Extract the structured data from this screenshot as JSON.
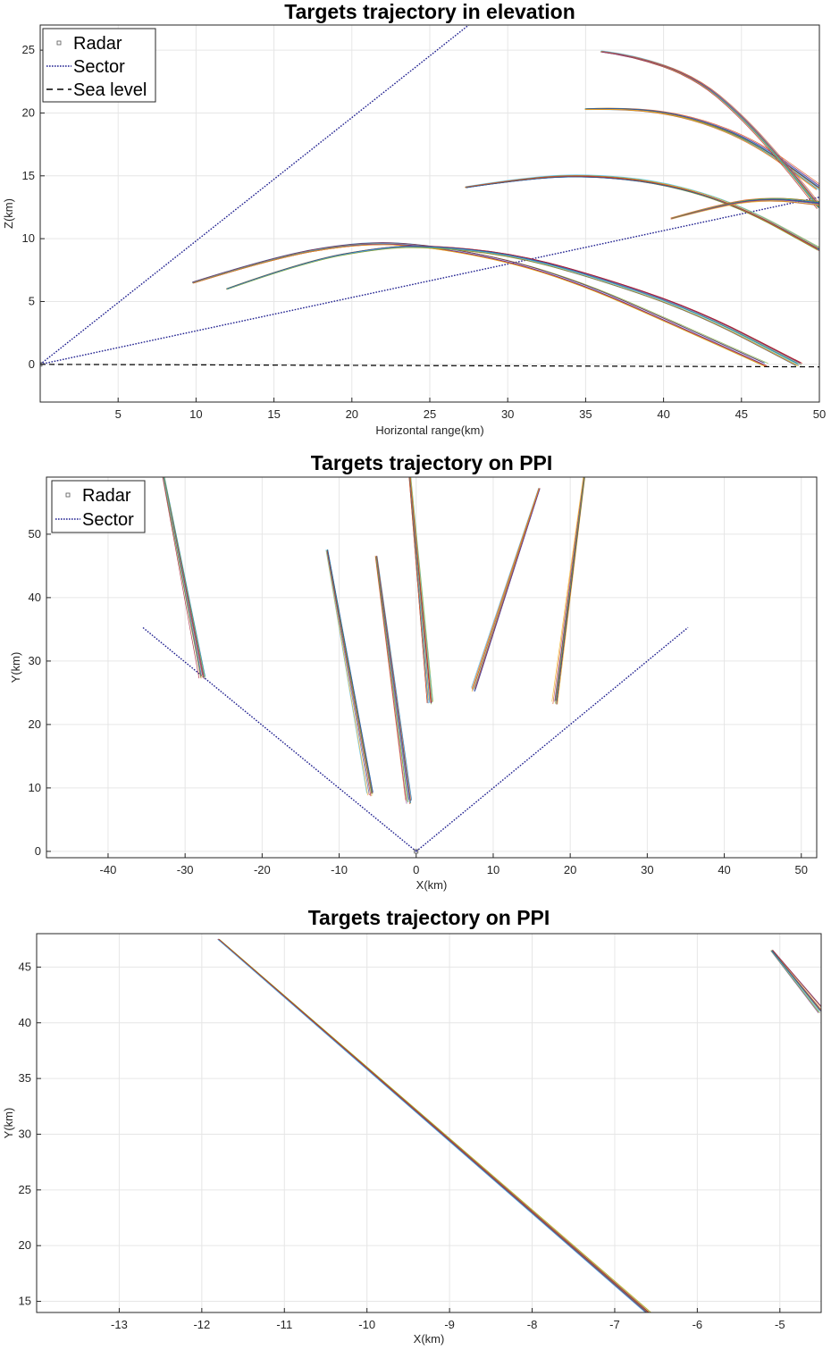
{
  "palette": [
    "#0072BD",
    "#D95319",
    "#EDB120",
    "#7E2F8E",
    "#77AC30",
    "#4DBEEE",
    "#A2142F"
  ],
  "colors": {
    "sector": "#1f1f8f",
    "sea_level": "#000000",
    "grid": "#e6e6e6",
    "axes": "#262626"
  },
  "chart_data": [
    {
      "type": "line",
      "title": "Targets trajectory in elevation",
      "xlabel": "Horizontal range(km)",
      "ylabel": "Z(km)",
      "xlim": [
        0,
        50
      ],
      "ylim": [
        -3,
        27
      ],
      "xticks": [
        5,
        10,
        15,
        20,
        25,
        30,
        35,
        40,
        45,
        50
      ],
      "yticks": [
        0,
        5,
        10,
        15,
        20,
        25
      ],
      "grid": true,
      "legend": {
        "placement": "top-left",
        "entries": [
          "Radar",
          "Sector",
          "Sea level"
        ]
      },
      "radar": {
        "x": 0,
        "z": 0
      },
      "sector_lines": [
        {
          "points": [
            [
              0,
              0
            ],
            [
              27.5,
              27
            ]
          ]
        },
        {
          "points": [
            [
              0,
              0
            ],
            [
              50,
              13.3
            ]
          ]
        }
      ],
      "sea_level": {
        "points": [
          [
            0,
            0
          ],
          [
            50,
            -0.2
          ]
        ]
      },
      "trajectories": [
        {
          "x": [
            9.8,
            15,
            20,
            24,
            30,
            35,
            40,
            46.5
          ],
          "z": [
            6.5,
            8.5,
            9.6,
            9.6,
            8.3,
            6.3,
            3.6,
            0
          ]
        },
        {
          "x": [
            12,
            17,
            22,
            25,
            30,
            35,
            42,
            48.7
          ],
          "z": [
            6.0,
            8.2,
            9.3,
            9.4,
            8.8,
            7.2,
            4.3,
            0
          ]
        },
        {
          "x": [
            27.3,
            31,
            35,
            40,
            45,
            50
          ],
          "z": [
            14.1,
            14.8,
            15.1,
            14.5,
            12.6,
            9.2
          ]
        },
        {
          "x": [
            35,
            38,
            42,
            46,
            50
          ],
          "z": [
            20.3,
            20.4,
            19.6,
            17.6,
            14.0
          ]
        },
        {
          "x": [
            36,
            38,
            42,
            45,
            48,
            50
          ],
          "z": [
            24.9,
            24.6,
            22.9,
            19.8,
            15.6,
            12.5
          ]
        },
        {
          "x": [
            40.5,
            44,
            47,
            50
          ],
          "z": [
            11.6,
            12.8,
            13.2,
            12.8
          ]
        }
      ]
    },
    {
      "type": "line",
      "title": "Targets trajectory on PPI",
      "xlabel": "X(km)",
      "ylabel": "Y(km)",
      "xlim": [
        -48,
        52
      ],
      "ylim": [
        -1,
        59
      ],
      "xticks": [
        -40,
        -30,
        -20,
        -10,
        0,
        10,
        20,
        30,
        40,
        50
      ],
      "yticks": [
        0,
        10,
        20,
        30,
        40,
        50
      ],
      "grid": true,
      "legend": {
        "placement": "top-left",
        "entries": [
          "Radar",
          "Sector"
        ]
      },
      "radar": {
        "x": 0,
        "y": 0
      },
      "sector_lines": [
        {
          "points": [
            [
              0,
              0
            ],
            [
              -35.5,
              35.3
            ]
          ]
        },
        {
          "points": [
            [
              0,
              0
            ],
            [
              35.3,
              35.3
            ]
          ]
        }
      ],
      "trajectories": [
        {
          "x": [
            -32.8,
            -27.8
          ],
          "y": [
            59,
            27.5
          ]
        },
        {
          "x": [
            -11.6,
            -6.0
          ],
          "y": [
            47.5,
            9.0
          ]
        },
        {
          "x": [
            -5.2,
            -1.0
          ],
          "y": [
            46.5,
            7.8
          ]
        },
        {
          "x": [
            -0.8,
            1.8
          ],
          "y": [
            59,
            23.5
          ]
        },
        {
          "x": [
            16.0,
            7.5
          ],
          "y": [
            57.2,
            25.5
          ]
        },
        {
          "x": [
            21.8,
            18.0
          ],
          "y": [
            59,
            23.5
          ]
        }
      ]
    },
    {
      "type": "line",
      "title": "Targets trajectory on PPI",
      "xlabel": "X(km)",
      "ylabel": "Y(km)",
      "xlim": [
        -14.0,
        -4.5
      ],
      "ylim": [
        14,
        48
      ],
      "xticks": [
        -13,
        -12,
        -11,
        -10,
        -9,
        -8,
        -7,
        -6,
        -5
      ],
      "yticks": [
        15,
        20,
        25,
        30,
        35,
        40,
        45
      ],
      "grid": true,
      "trajectories": [
        {
          "x": [
            -11.8,
            -6.6
          ],
          "y": [
            47.5,
            14
          ]
        },
        {
          "x": [
            -5.1,
            -4.5
          ],
          "y": [
            46.5,
            41.0
          ]
        }
      ]
    }
  ]
}
